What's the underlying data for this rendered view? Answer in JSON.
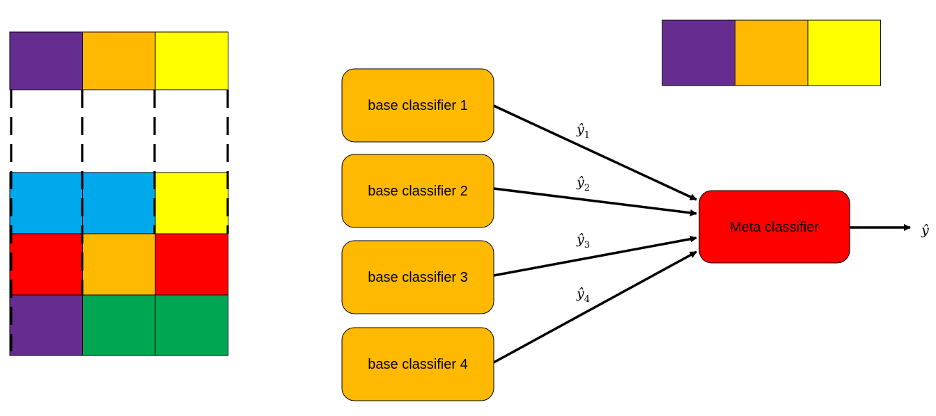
{
  "colors": {
    "purple": "#662d91",
    "orange": "#ffb900",
    "yellow": "#ffff00",
    "blue": "#00a8ec",
    "red": "#ff0000",
    "green": "#00a651",
    "empty": "#ffffff"
  },
  "grid": {
    "rows": [
      [
        "purple",
        "orange",
        "yellow"
      ],
      [
        "empty",
        "empty",
        "empty"
      ],
      [
        "blue",
        "blue",
        "yellow"
      ],
      [
        "red",
        "orange",
        "red"
      ],
      [
        "purple",
        "green",
        "green"
      ]
    ]
  },
  "top_row": [
    "purple",
    "orange",
    "yellow"
  ],
  "base_classifiers": [
    {
      "label": "base classifier 1",
      "output": "ŷ",
      "sub": "1"
    },
    {
      "label": "base classifier 2",
      "output": "ŷ",
      "sub": "2"
    },
    {
      "label": "base classifier 3",
      "output": "ŷ",
      "sub": "3"
    },
    {
      "label": "base classifier 4",
      "output": "ŷ",
      "sub": "4"
    }
  ],
  "meta": {
    "label": "Meta classifier",
    "output": "ŷ"
  }
}
